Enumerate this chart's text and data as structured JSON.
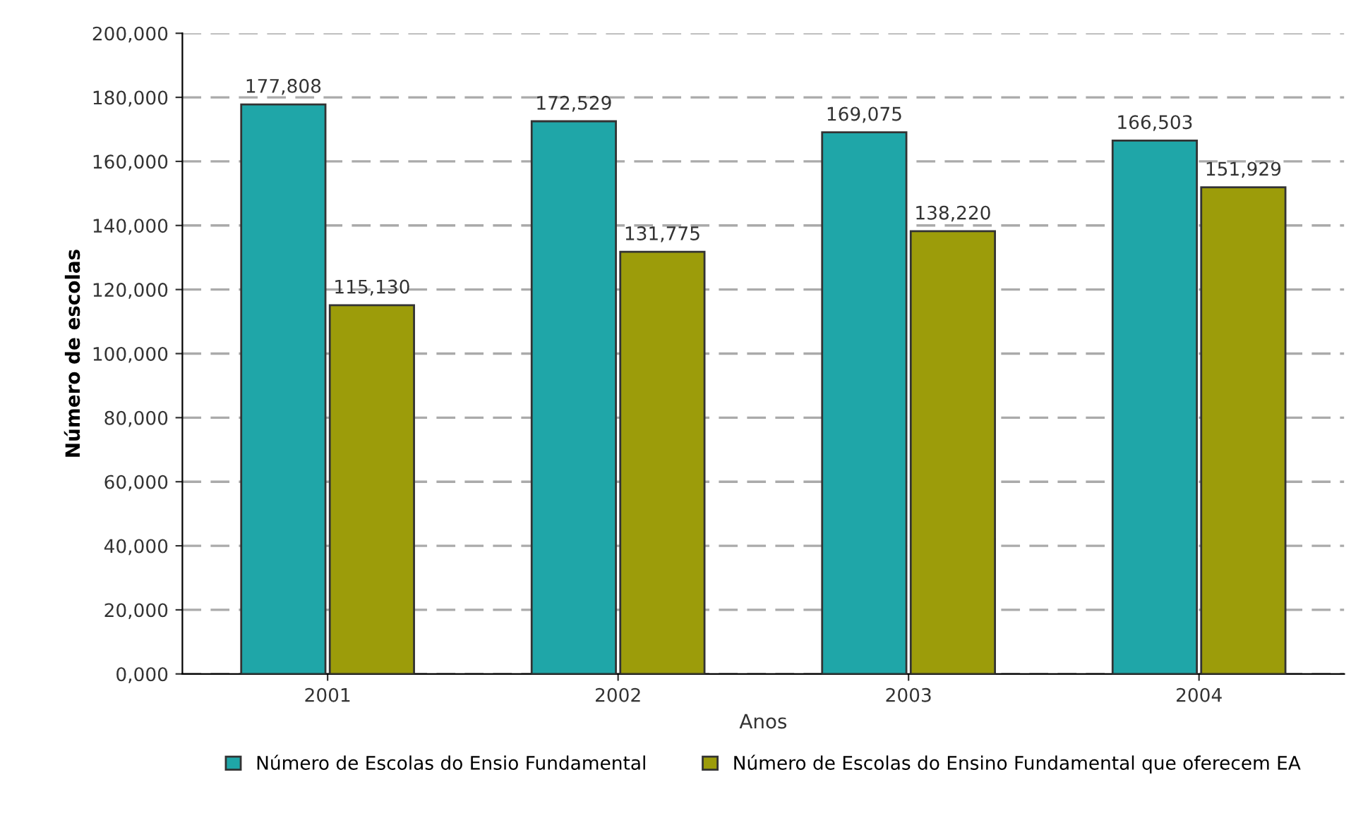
{
  "chart_data": {
    "type": "bar",
    "xlabel": "Anos",
    "ylabel": "Número de escolas",
    "categories": [
      "2001",
      "2002",
      "2003",
      "2004"
    ],
    "series": [
      {
        "name": "Número de Escolas do Ensio Fundamental",
        "color": "#1fa6a8",
        "values": [
          177808,
          172529,
          169075,
          166503
        ],
        "value_labels": [
          "177,808",
          "172,529",
          "169,075",
          "166,503"
        ]
      },
      {
        "name": "Número de Escolas do Ensino Fundamental que oferecem EA",
        "color": "#9c9c0a",
        "values": [
          115130,
          131775,
          138220,
          151929
        ],
        "value_labels": [
          "115,130",
          "131,775",
          "138,220",
          "151,929"
        ]
      }
    ],
    "ylim": [
      0,
      200000
    ],
    "yticks": [
      {
        "value": 0,
        "label": "0,000"
      },
      {
        "value": 20000,
        "label": "20,000"
      },
      {
        "value": 40000,
        "label": "40,000"
      },
      {
        "value": 60000,
        "label": "60,000"
      },
      {
        "value": 80000,
        "label": "80,000"
      },
      {
        "value": 100000,
        "label": "100,000"
      },
      {
        "value": 120000,
        "label": "120,000"
      },
      {
        "value": 140000,
        "label": "140,000"
      },
      {
        "value": 160000,
        "label": "160,000"
      },
      {
        "value": 180000,
        "label": "180,000"
      },
      {
        "value": 200000,
        "label": "200,000"
      }
    ],
    "grid": "y",
    "legend": "bottom"
  }
}
